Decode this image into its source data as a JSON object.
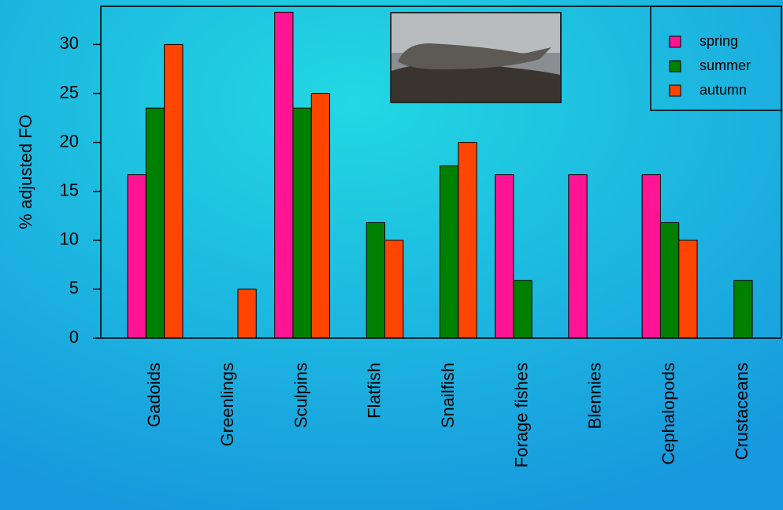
{
  "chart_data": {
    "type": "bar",
    "y_label": "% adjusted FO",
    "categories": [
      "Gadoids",
      "Greenlings",
      "Sculpins",
      "Flatfish",
      "Snailfish",
      "Forage fishes",
      "Blennies",
      "Cephalopods",
      "Crustaceans"
    ],
    "series": [
      {
        "name": "spring",
        "color": "#ff1493",
        "values": [
          16.7,
          0,
          33.3,
          0,
          0,
          16.7,
          16.7,
          16.7,
          0
        ]
      },
      {
        "name": "summer",
        "color": "#008000",
        "values": [
          23.5,
          0,
          23.5,
          11.8,
          17.6,
          5.9,
          0,
          11.8,
          5.9
        ]
      },
      {
        "name": "autumn",
        "color": "#ff4500",
        "values": [
          30,
          5,
          25,
          10,
          20,
          0,
          0,
          10,
          0
        ]
      }
    ],
    "ylim": [
      0,
      33.9
    ],
    "yticks": [
      0,
      5,
      10,
      15,
      20,
      25,
      30
    ],
    "legend": "top-right"
  }
}
